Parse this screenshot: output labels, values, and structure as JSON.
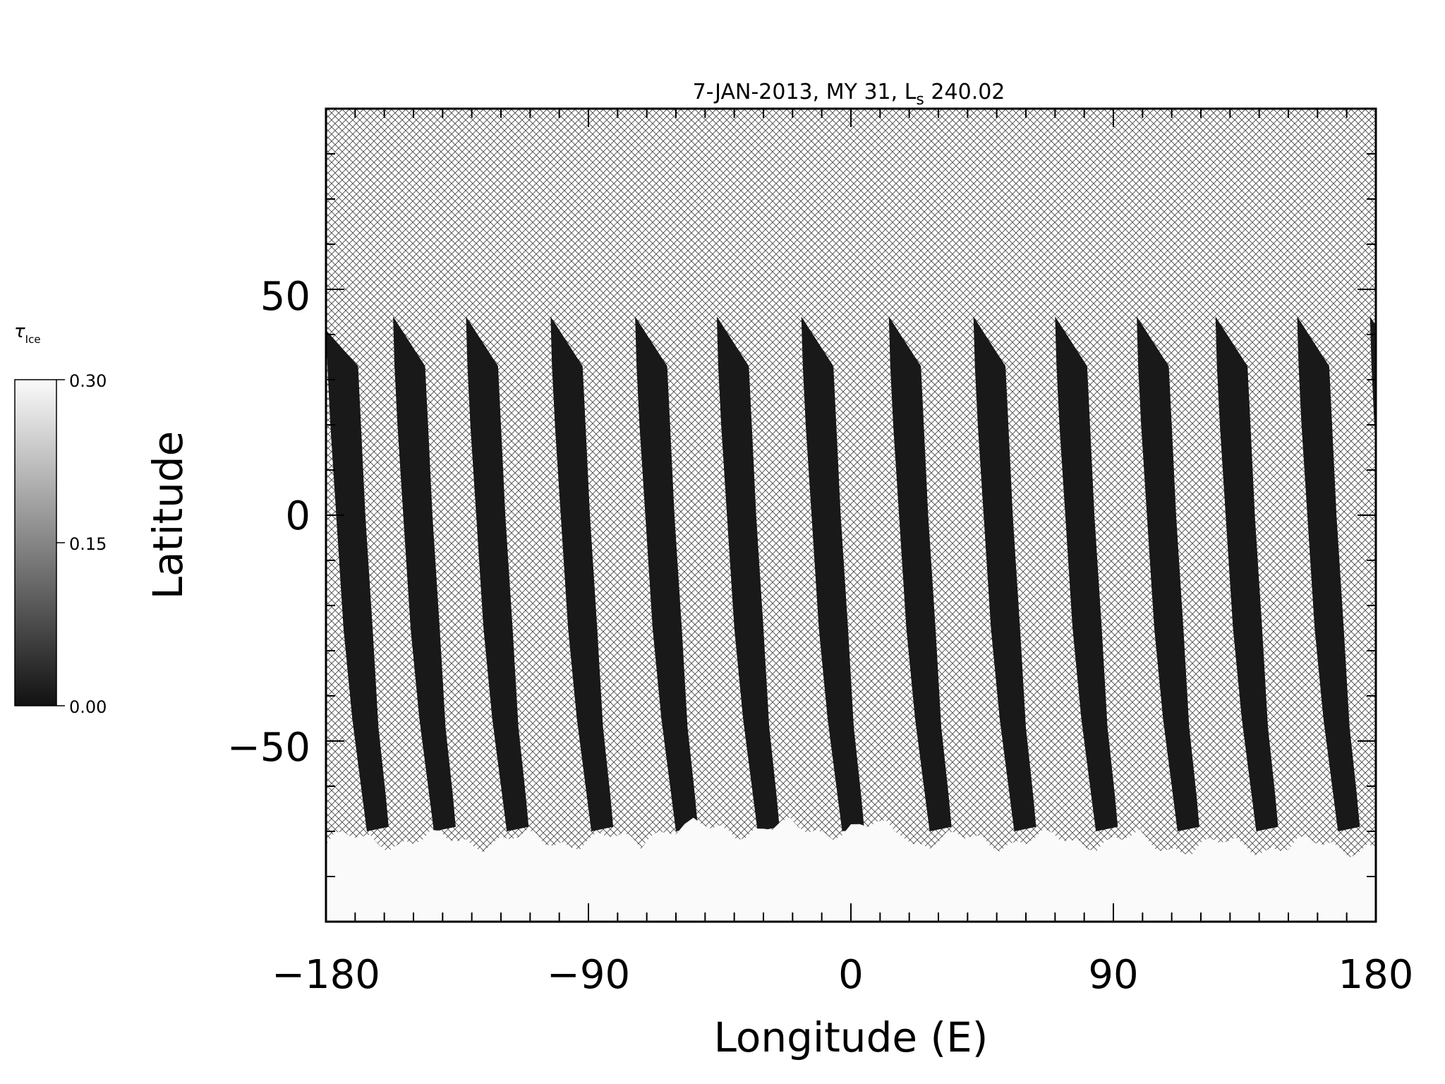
{
  "chart_data": {
    "type": "heatmap",
    "title": "7-JAN-2013, MY 31,  L",
    "title_subscript": "s",
    "title_suffix": " 240.02",
    "xlabel": "Longitude (E)",
    "ylabel": "Latitude",
    "xlim": [
      -180,
      180
    ],
    "ylim": [
      -90,
      90
    ],
    "xticks": [
      -180,
      -90,
      0,
      90,
      180
    ],
    "xtick_labels": [
      "−180",
      "−90",
      "0",
      "90",
      "180"
    ],
    "yticks": [
      -50,
      0,
      50
    ],
    "ytick_labels": [
      "−50",
      "0",
      "50"
    ],
    "x_minor_step": 10,
    "y_minor_step": 10,
    "no_data_fill": "crosshatch",
    "colorbar": {
      "label": "τ",
      "label_subscript": "Ice",
      "min": 0.0,
      "max": 0.3,
      "ticks": [
        0.0,
        0.15,
        0.3
      ],
      "tick_labels": [
        "0.00",
        "0.15",
        "0.30"
      ],
      "colormap": "grayscale",
      "position": "left"
    },
    "swaths": [
      {
        "lon_top": -180,
        "lat_top": 41
      },
      {
        "lon_top": -157,
        "lat_top": 44
      },
      {
        "lon_top": -132,
        "lat_top": 44
      },
      {
        "lon_top": -103,
        "lat_top": 44
      },
      {
        "lon_top": -74,
        "lat_top": 44
      },
      {
        "lon_top": -46,
        "lat_top": 44
      },
      {
        "lon_top": -17,
        "lat_top": 44
      },
      {
        "lon_top": 13,
        "lat_top": 44
      },
      {
        "lon_top": 42,
        "lat_top": 44
      },
      {
        "lon_top": 70,
        "lat_top": 44
      },
      {
        "lon_top": 98,
        "lat_top": 44
      },
      {
        "lon_top": 125,
        "lat_top": 44
      },
      {
        "lon_top": 153,
        "lat_top": 44
      },
      {
        "lon_top": 178,
        "lat_top": 44
      }
    ],
    "swath_tau": 0.01,
    "south_polar_tau": 0.3,
    "south_polar_edge_lat": -72
  }
}
